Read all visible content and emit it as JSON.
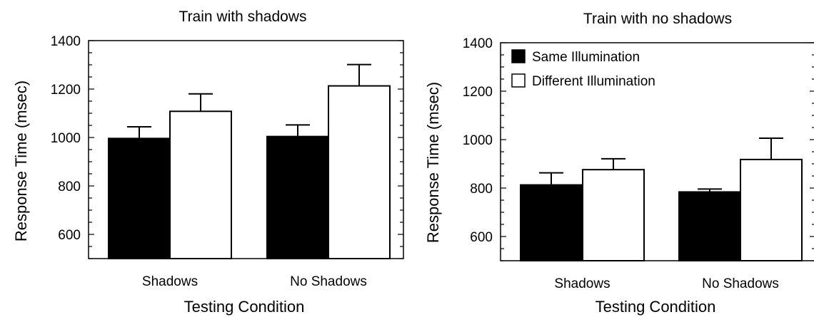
{
  "chart_data": [
    {
      "type": "bar",
      "title": "Train with shadows",
      "xlabel": "Testing Condition",
      "ylabel": "Response Time (msec)",
      "categories": [
        "Shadows",
        "No Shadows"
      ],
      "yticks": [
        "600",
        "800",
        "1000",
        "1200",
        "1400"
      ],
      "ylim": [
        500,
        1400
      ],
      "grid": false,
      "legend": null,
      "series": [
        {
          "name": "Same Illumination",
          "values": [
            996,
            1004
          ],
          "errors": [
            48,
            48
          ],
          "color": "#000000"
        },
        {
          "name": "Different Illumination",
          "values": [
            1108,
            1213
          ],
          "errors": [
            72,
            88
          ],
          "color": "#ffffff"
        }
      ]
    },
    {
      "type": "bar",
      "title": "Train with no shadows",
      "xlabel": "Testing Condition",
      "ylabel": "Response Time (msec)",
      "categories": [
        "Shadows",
        "No Shadows"
      ],
      "yticks": [
        "600",
        "800",
        "1000",
        "1200",
        "1400"
      ],
      "ylim": [
        500,
        1400
      ],
      "grid": false,
      "legend": "top-left",
      "series": [
        {
          "name": "Same Illumination",
          "values": [
            813,
            784
          ],
          "errors": [
            50,
            12
          ],
          "color": "#000000"
        },
        {
          "name": "Different Illumination",
          "values": [
            876,
            918
          ],
          "errors": [
            45,
            88
          ],
          "color": "#ffffff"
        }
      ]
    }
  ]
}
